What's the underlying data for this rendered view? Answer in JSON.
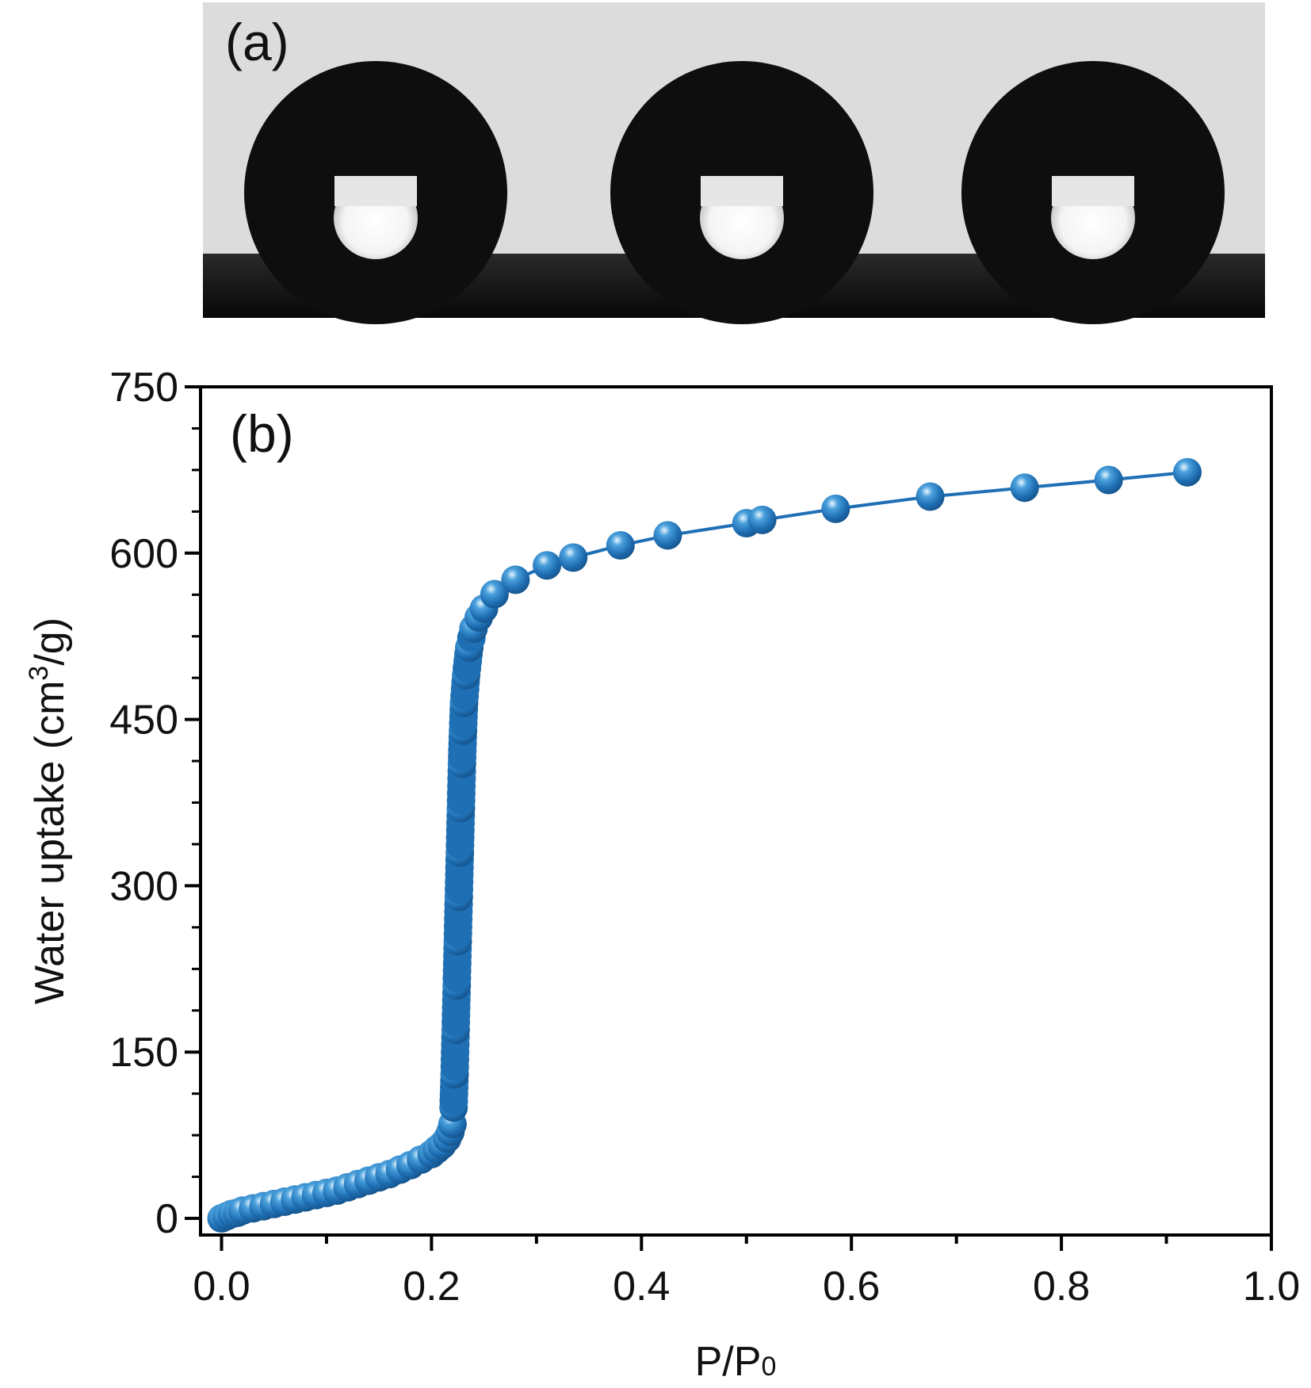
{
  "panel_a": {
    "label": "(a)",
    "droplet_count": 3,
    "colors": {
      "background": "#dcdcdc",
      "droplet": "#0e0e0e",
      "substrate": "#101010"
    }
  },
  "chart_data": {
    "type": "scatter",
    "panel_label": "(b)",
    "xlabel_main": "P/P",
    "xlabel_sub": "0",
    "ylabel_main": "Water uptake (cm",
    "ylabel_sup": "3",
    "ylabel_end": "/g)",
    "xlim": [
      -0.02,
      1.0
    ],
    "ylim": [
      -15,
      750
    ],
    "x_ticks": [
      "0.0",
      "0.2",
      "0.4",
      "0.6",
      "0.8",
      "1.0"
    ],
    "x_tick_values": [
      0,
      0.2,
      0.4,
      0.6,
      0.8,
      1.0
    ],
    "y_ticks": [
      "0",
      "150",
      "300",
      "450",
      "600",
      "750"
    ],
    "y_tick_values": [
      0,
      150,
      300,
      450,
      600,
      750
    ],
    "grid": false,
    "series_color": "#1f6fb4",
    "marker": "sphere",
    "series": [
      {
        "x": [
          0,
          0.005,
          0.01,
          0.015,
          0.02,
          0.03,
          0.04,
          0.05,
          0.06,
          0.07,
          0.08,
          0.09,
          0.1,
          0.11,
          0.12,
          0.13,
          0.14,
          0.15,
          0.16,
          0.17,
          0.18,
          0.19,
          0.2,
          0.205,
          0.21,
          0.215,
          0.218,
          0.22,
          0.221,
          0.222,
          0.223,
          0.224,
          0.225,
          0.226,
          0.227,
          0.228,
          0.229,
          0.23,
          0.231,
          0.233,
          0.236,
          0.24,
          0.245,
          0.25,
          0.26,
          0.28,
          0.31,
          0.335,
          0.38,
          0.425,
          0.5,
          0.515,
          0.585,
          0.675,
          0.765,
          0.845,
          0.92
        ],
        "y": [
          0,
          2,
          4,
          5,
          7,
          9,
          11,
          13,
          15,
          17,
          19,
          21,
          23,
          25,
          28,
          31,
          34,
          37,
          40,
          44,
          48,
          53,
          58,
          62,
          66,
          72,
          78,
          85,
          100,
          130,
          170,
          210,
          250,
          290,
          330,
          370,
          410,
          440,
          465,
          490,
          515,
          532,
          542,
          550,
          563,
          576,
          589,
          596,
          607,
          616,
          627,
          630,
          640,
          651,
          659,
          666,
          673
        ]
      }
    ]
  }
}
